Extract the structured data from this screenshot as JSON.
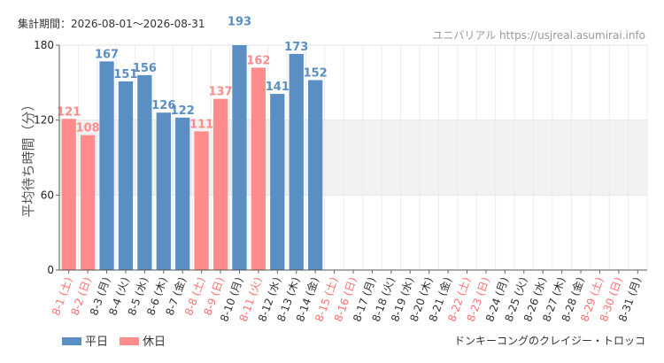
{
  "header": {
    "period": "集計期間：2026-08-01〜2026-08-31",
    "source": "ユニバリアル  https://usjreal.asumirai.info"
  },
  "footer": {
    "attraction": "ドンキーコングのクレイジー・トロッコ"
  },
  "chart_data": {
    "type": "bar",
    "ylabel": "平均待ち時間（分）",
    "ylim": [
      0,
      180
    ],
    "yticks": [
      0,
      60,
      120,
      180
    ],
    "shaded_band": [
      60,
      120
    ],
    "grid": true,
    "legend": {
      "placement": "bottom-left",
      "entries": [
        {
          "name": "平日",
          "color": "#5b8ec3"
        },
        {
          "name": "休日",
          "color": "#ff8c8c"
        }
      ]
    },
    "colors": {
      "weekday": "#5b8ec3",
      "holiday": "#ff8c8c"
    },
    "categories": [
      {
        "label": "8-1 (土)",
        "holiday": true,
        "value": 121
      },
      {
        "label": "8-2 (日)",
        "holiday": true,
        "value": 108
      },
      {
        "label": "8-3 (月)",
        "holiday": false,
        "value": 167
      },
      {
        "label": "8-4 (火)",
        "holiday": false,
        "value": 151
      },
      {
        "label": "8-5 (水)",
        "holiday": false,
        "value": 156
      },
      {
        "label": "8-6 (木)",
        "holiday": false,
        "value": 126
      },
      {
        "label": "8-7 (金)",
        "holiday": false,
        "value": 122
      },
      {
        "label": "8-8 (土)",
        "holiday": true,
        "value": 111
      },
      {
        "label": "8-9 (日)",
        "holiday": true,
        "value": 137
      },
      {
        "label": "8-10 (月)",
        "holiday": false,
        "value": 193
      },
      {
        "label": "8-11 (火)",
        "holiday": true,
        "value": 162
      },
      {
        "label": "8-12 (水)",
        "holiday": false,
        "value": 141
      },
      {
        "label": "8-13 (木)",
        "holiday": false,
        "value": 173
      },
      {
        "label": "8-14 (金)",
        "holiday": false,
        "value": 152
      },
      {
        "label": "8-15 (土)",
        "holiday": true,
        "value": null
      },
      {
        "label": "8-16 (日)",
        "holiday": true,
        "value": null
      },
      {
        "label": "8-17 (月)",
        "holiday": false,
        "value": null
      },
      {
        "label": "8-18 (火)",
        "holiday": false,
        "value": null
      },
      {
        "label": "8-19 (水)",
        "holiday": false,
        "value": null
      },
      {
        "label": "8-20 (木)",
        "holiday": false,
        "value": null
      },
      {
        "label": "8-21 (金)",
        "holiday": false,
        "value": null
      },
      {
        "label": "8-22 (土)",
        "holiday": true,
        "value": null
      },
      {
        "label": "8-23 (日)",
        "holiday": true,
        "value": null
      },
      {
        "label": "8-24 (月)",
        "holiday": false,
        "value": null
      },
      {
        "label": "8-25 (火)",
        "holiday": false,
        "value": null
      },
      {
        "label": "8-26 (水)",
        "holiday": false,
        "value": null
      },
      {
        "label": "8-27 (木)",
        "holiday": false,
        "value": null
      },
      {
        "label": "8-28 (金)",
        "holiday": false,
        "value": null
      },
      {
        "label": "8-29 (土)",
        "holiday": true,
        "value": null
      },
      {
        "label": "8-30 (日)",
        "holiday": true,
        "value": null
      },
      {
        "label": "8-31 (月)",
        "holiday": false,
        "value": null
      }
    ]
  }
}
